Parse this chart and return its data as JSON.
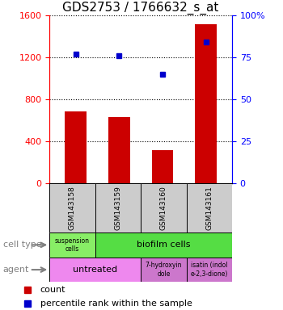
{
  "title": "GDS2753 / 1766632_s_at",
  "samples": [
    "GSM143158",
    "GSM143159",
    "GSM143160",
    "GSM143161"
  ],
  "bar_values": [
    680,
    630,
    310,
    1520
  ],
  "bar_color": "#cc0000",
  "percentile_values": [
    77,
    76,
    65,
    84
  ],
  "percentile_color": "#0000cc",
  "ylim_left": [
    0,
    1600
  ],
  "ylim_right": [
    0,
    100
  ],
  "yticks_left": [
    0,
    400,
    800,
    1200,
    1600
  ],
  "yticks_right": [
    0,
    25,
    50,
    75,
    100
  ],
  "ytick_labels_right": [
    "0",
    "25",
    "50",
    "75",
    "100%"
  ],
  "cell_type_green_light": "#88ee66",
  "cell_type_green_dark": "#55dd44",
  "agent_pink_light": "#ee88ee",
  "agent_pink_dark": "#cc77cc",
  "gsm_box_color": "#cccccc",
  "bar_width": 0.5,
  "title_fontsize": 11,
  "tick_fontsize": 8,
  "label_fontsize": 8,
  "small_fontsize": 6
}
